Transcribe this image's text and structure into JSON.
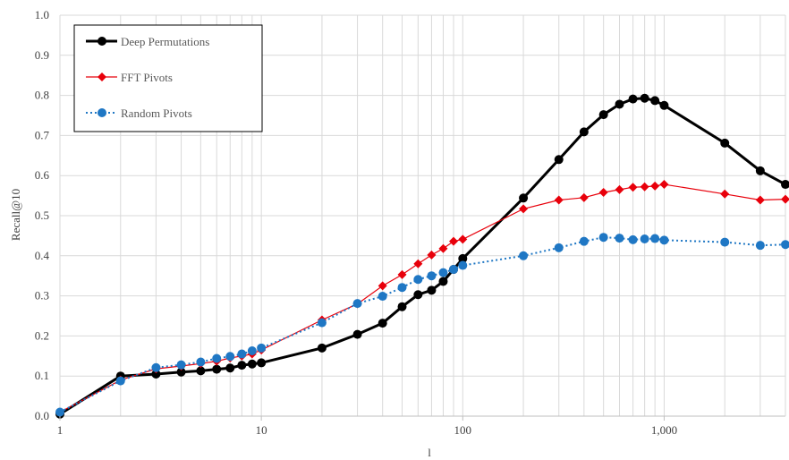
{
  "chart_data": {
    "type": "line",
    "xscale": "log",
    "xlim": [
      1,
      4000
    ],
    "ylim": [
      0,
      1.0
    ],
    "xlabel": "l",
    "ylabel": "Recall@10",
    "grid": true,
    "legend_position": "top-left",
    "x_ticks": [
      1,
      10,
      100,
      1000
    ],
    "x_tick_labels": [
      "1",
      "10",
      "100",
      "1,000"
    ],
    "y_ticks": [
      0,
      0.1,
      0.2,
      0.3,
      0.4,
      0.5,
      0.6,
      0.7,
      0.8,
      0.9,
      1.0
    ],
    "y_tick_labels": [
      "0.0",
      "0.1",
      "0.2",
      "0.3",
      "0.4",
      "0.5",
      "0.6",
      "0.7",
      "0.8",
      "0.9",
      "1.0"
    ],
    "series": [
      {
        "name": "Deep Permutations",
        "color": "#000000",
        "marker": "circle",
        "line": "solid",
        "x": [
          1,
          2,
          3,
          4,
          5,
          6,
          7,
          8,
          9,
          10,
          20,
          30,
          40,
          50,
          60,
          70,
          80,
          90,
          100,
          200,
          300,
          400,
          500,
          600,
          700,
          800,
          900,
          1000,
          2000,
          3000,
          4000
        ],
        "y": [
          0.005,
          0.1,
          0.105,
          0.11,
          0.113,
          0.117,
          0.12,
          0.127,
          0.13,
          0.133,
          0.17,
          0.204,
          0.232,
          0.273,
          0.303,
          0.314,
          0.336,
          0.366,
          0.393,
          0.544,
          0.64,
          0.709,
          0.752,
          0.778,
          0.791,
          0.793,
          0.787,
          0.775,
          0.681,
          0.612,
          0.578
        ]
      },
      {
        "name": "FFT Pivots",
        "color": "#e8000b",
        "marker": "diamond",
        "line": "solid",
        "x": [
          1,
          2,
          3,
          4,
          5,
          6,
          7,
          8,
          9,
          10,
          20,
          30,
          40,
          50,
          60,
          70,
          80,
          90,
          100,
          200,
          300,
          400,
          500,
          600,
          700,
          800,
          900,
          1000,
          2000,
          3000,
          4000
        ],
        "y": [
          0.01,
          0.09,
          0.118,
          0.125,
          0.131,
          0.137,
          0.145,
          0.15,
          0.155,
          0.165,
          0.24,
          0.28,
          0.325,
          0.353,
          0.38,
          0.402,
          0.418,
          0.436,
          0.441,
          0.517,
          0.539,
          0.545,
          0.558,
          0.565,
          0.571,
          0.572,
          0.574,
          0.578,
          0.554,
          0.539,
          0.541
        ]
      },
      {
        "name": "Random Pivots",
        "color": "#1f77c4",
        "marker": "circle",
        "line": "dotted",
        "x": [
          1,
          2,
          3,
          4,
          5,
          6,
          7,
          8,
          9,
          10,
          20,
          30,
          40,
          50,
          60,
          70,
          80,
          90,
          100,
          200,
          300,
          400,
          500,
          600,
          700,
          800,
          900,
          1000,
          2000,
          3000,
          4000
        ],
        "y": [
          0.01,
          0.088,
          0.121,
          0.128,
          0.135,
          0.144,
          0.149,
          0.155,
          0.163,
          0.17,
          0.233,
          0.281,
          0.299,
          0.321,
          0.341,
          0.35,
          0.358,
          0.366,
          0.376,
          0.4,
          0.42,
          0.436,
          0.446,
          0.444,
          0.44,
          0.442,
          0.443,
          0.439,
          0.434,
          0.426,
          0.428
        ]
      }
    ]
  }
}
